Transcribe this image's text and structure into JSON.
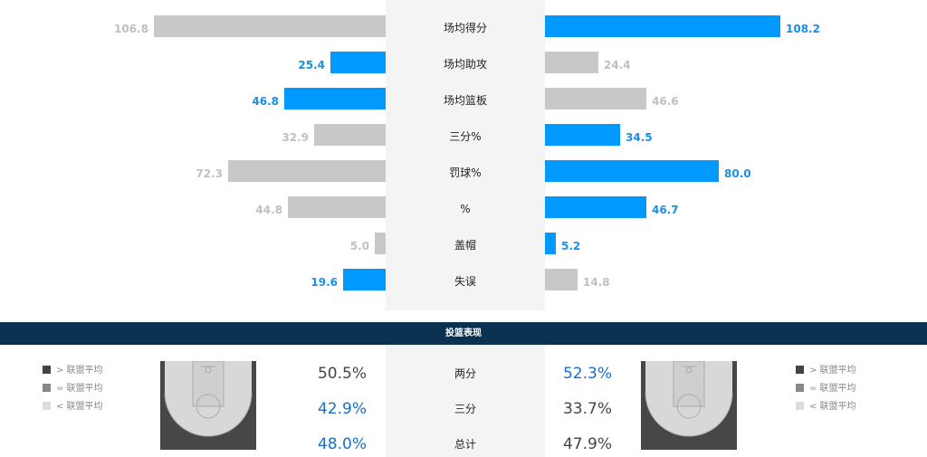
{
  "stats": [
    {
      "label": "场均得分",
      "left": {
        "value": "106.8",
        "num": 106.8,
        "color": "grey"
      },
      "right": {
        "value": "108.2",
        "num": 108.2,
        "color": "blue"
      }
    },
    {
      "label": "场均助攻",
      "left": {
        "value": "25.4",
        "num": 25.4,
        "color": "blue"
      },
      "right": {
        "value": "24.4",
        "num": 24.4,
        "color": "grey"
      }
    },
    {
      "label": "场均篮板",
      "left": {
        "value": "46.8",
        "num": 46.8,
        "color": "blue"
      },
      "right": {
        "value": "46.6",
        "num": 46.6,
        "color": "grey"
      }
    },
    {
      "label": "三分%",
      "left": {
        "value": "32.9",
        "num": 32.9,
        "color": "grey"
      },
      "right": {
        "value": "34.5",
        "num": 34.5,
        "color": "blue"
      }
    },
    {
      "label": "罚球%",
      "left": {
        "value": "72.3",
        "num": 72.3,
        "color": "grey"
      },
      "right": {
        "value": "80.0",
        "num": 80.0,
        "color": "blue"
      }
    },
    {
      "label": "%",
      "left": {
        "value": "44.8",
        "num": 44.8,
        "color": "grey"
      },
      "right": {
        "value": "46.7",
        "num": 46.7,
        "color": "blue"
      }
    },
    {
      "label": "盖帽",
      "left": {
        "value": "5.0",
        "num": 5.0,
        "color": "grey"
      },
      "right": {
        "value": "5.2",
        "num": 5.2,
        "color": "blue"
      }
    },
    {
      "label": "失误",
      "left": {
        "value": "19.6",
        "num": 19.6,
        "color": "blue"
      },
      "right": {
        "value": "14.8",
        "num": 14.8,
        "color": "grey"
      }
    }
  ],
  "colors": {
    "blue": "#0099ff",
    "grey": "#c8c8c8",
    "header": "#0b3150"
  },
  "shooting": {
    "title": "投篮表现",
    "legend": [
      {
        "label": "> 联盟平均",
        "color": "#444444"
      },
      {
        "label": "= 联盟平均",
        "color": "#888888"
      },
      {
        "label": "< 联盟平均",
        "color": "#dddddd"
      }
    ],
    "rows": [
      {
        "label": "两分",
        "left": "50.5%",
        "left_tone": "dark",
        "right": "52.3%",
        "right_tone": "blue"
      },
      {
        "label": "三分",
        "left": "42.9%",
        "left_tone": "blue",
        "right": "33.7%",
        "right_tone": "dark"
      },
      {
        "label": "总计",
        "left": "48.0%",
        "left_tone": "blue",
        "right": "47.9%",
        "right_tone": "dark"
      }
    ]
  }
}
